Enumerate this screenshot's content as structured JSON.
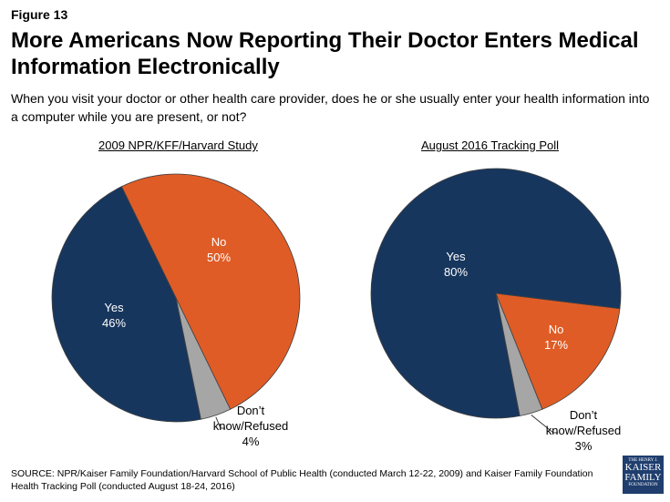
{
  "figure_label": "Figure 13",
  "title": "More Americans Now Reporting Their Doctor Enters Medical Information Electronically",
  "subtitle": "When you visit your doctor or other health care provider, does he or she usually enter your health information into a computer while you are present, or not?",
  "source": "SOURCE: NPR/Kaiser Family Foundation/Harvard School of Public Health (conducted March 12-22, 2009) and Kaiser Family Foundation Health Tracking Poll (conducted August 18-24, 2016)",
  "logo_text": "THE HENRY J. KAISER FAMILY FOUNDATION",
  "colors": {
    "yes": "#17365d",
    "no": "#e05c26",
    "dont_know": "#a6a6a6"
  },
  "chart_data": [
    {
      "type": "pie",
      "title": "2009 NPR/KFF/Harvard Study",
      "slices": [
        {
          "label": "No",
          "value": 50,
          "display": "50%"
        },
        {
          "label": "Don’t know/Refused",
          "value": 4,
          "display": "4%"
        },
        {
          "label": "Yes",
          "value": 46,
          "display": "46%"
        }
      ]
    },
    {
      "type": "pie",
      "title": "August 2016 Tracking Poll",
      "slices": [
        {
          "label": "No",
          "value": 17,
          "display": "17%"
        },
        {
          "label": "Don’t know/Refused",
          "value": 3,
          "display": "3%"
        },
        {
          "label": "Yes",
          "value": 80,
          "display": "80%"
        }
      ]
    }
  ]
}
